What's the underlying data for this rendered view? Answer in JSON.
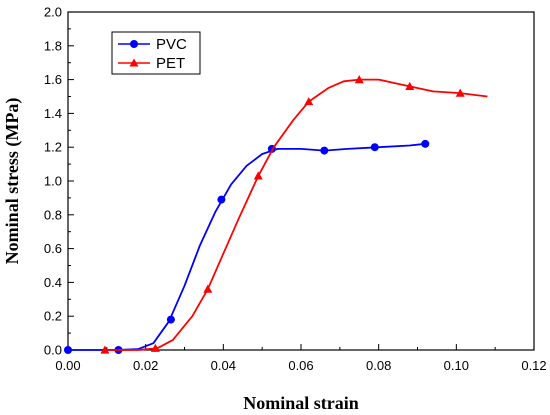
{
  "chart_data": {
    "type": "line",
    "title": "",
    "xlabel": "Nominal strain",
    "ylabel": "Nominal stress (MPa)",
    "xlim": [
      0.0,
      0.12
    ],
    "ylim": [
      0.0,
      2.0
    ],
    "x_ticks": [
      0.0,
      0.02,
      0.04,
      0.06,
      0.08,
      0.1,
      0.12
    ],
    "x_tick_labels": [
      "0.00",
      "0.02",
      "0.04",
      "0.06",
      "0.08",
      "0.10",
      "0.12"
    ],
    "y_ticks": [
      0.0,
      0.2,
      0.4,
      0.6,
      0.8,
      1.0,
      1.2,
      1.4,
      1.6,
      1.8,
      2.0
    ],
    "y_tick_labels": [
      "0.0",
      "0.2",
      "0.4",
      "0.6",
      "0.8",
      "1.0",
      "1.2",
      "1.4",
      "1.6",
      "1.8",
      "2.0"
    ],
    "grid": false,
    "legend_position": "top-left",
    "series": [
      {
        "name": "PVC",
        "color": "#0000ff",
        "marker": "circle",
        "curve": [
          [
            0.0,
            0.0
          ],
          [
            0.012,
            0.0
          ],
          [
            0.018,
            0.005
          ],
          [
            0.022,
            0.04
          ],
          [
            0.026,
            0.17
          ],
          [
            0.03,
            0.38
          ],
          [
            0.034,
            0.62
          ],
          [
            0.038,
            0.82
          ],
          [
            0.042,
            0.98
          ],
          [
            0.046,
            1.09
          ],
          [
            0.05,
            1.16
          ],
          [
            0.054,
            1.19
          ],
          [
            0.06,
            1.19
          ],
          [
            0.066,
            1.18
          ],
          [
            0.072,
            1.19
          ],
          [
            0.08,
            1.2
          ],
          [
            0.088,
            1.21
          ],
          [
            0.092,
            1.22
          ]
        ],
        "markers": [
          [
            0.0,
            0.0
          ],
          [
            0.013,
            0.0
          ],
          [
            0.0265,
            0.18
          ],
          [
            0.0395,
            0.89
          ],
          [
            0.0525,
            1.19
          ],
          [
            0.066,
            1.18
          ],
          [
            0.079,
            1.2
          ],
          [
            0.092,
            1.22
          ]
        ]
      },
      {
        "name": "PET",
        "color": "#ff0000",
        "marker": "triangle",
        "curve": [
          [
            0.01,
            0.0
          ],
          [
            0.018,
            0.0
          ],
          [
            0.023,
            0.01
          ],
          [
            0.027,
            0.06
          ],
          [
            0.032,
            0.2
          ],
          [
            0.036,
            0.36
          ],
          [
            0.04,
            0.57
          ],
          [
            0.044,
            0.78
          ],
          [
            0.049,
            1.03
          ],
          [
            0.053,
            1.2
          ],
          [
            0.058,
            1.36
          ],
          [
            0.062,
            1.47
          ],
          [
            0.067,
            1.55
          ],
          [
            0.071,
            1.59
          ],
          [
            0.075,
            1.6
          ],
          [
            0.08,
            1.6
          ],
          [
            0.084,
            1.58
          ],
          [
            0.088,
            1.56
          ],
          [
            0.094,
            1.53
          ],
          [
            0.101,
            1.52
          ],
          [
            0.108,
            1.5
          ]
        ],
        "markers": [
          [
            0.0095,
            0.0
          ],
          [
            0.0225,
            0.01
          ],
          [
            0.036,
            0.36
          ],
          [
            0.049,
            1.03
          ],
          [
            0.062,
            1.47
          ],
          [
            0.075,
            1.6
          ],
          [
            0.088,
            1.56
          ],
          [
            0.101,
            1.52
          ]
        ]
      }
    ]
  }
}
